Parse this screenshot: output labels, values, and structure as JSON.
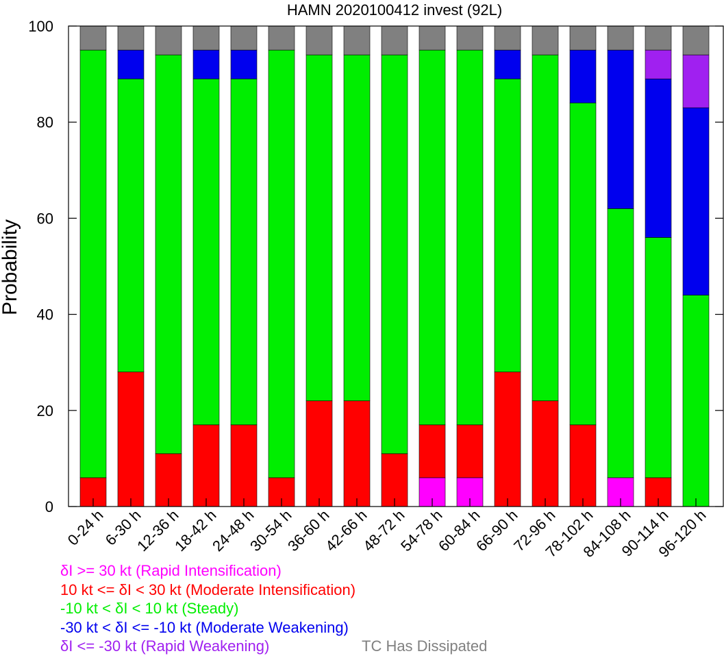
{
  "chart_data": {
    "type": "bar",
    "stacked": true,
    "title": "HAMN 2020100412 invest (92L)",
    "xlabel": "",
    "ylabel": "Probability",
    "ylim": [
      0,
      100
    ],
    "yticks": [
      "0",
      "20",
      "40",
      "60",
      "80",
      "100"
    ],
    "categories": [
      "0-24 h",
      "6-30 h",
      "12-36 h",
      "18-42 h",
      "24-48 h",
      "30-54 h",
      "36-60 h",
      "42-66 h",
      "48-72 h",
      "54-78 h",
      "60-84 h",
      "66-90 h",
      "72-96 h",
      "78-102 h",
      "84-108 h",
      "90-114 h",
      "96-120 h"
    ],
    "series": [
      {
        "name": "δI >= 30 kt (Rapid Intensification)",
        "color": "#ff00ff",
        "values": [
          0,
          0,
          0,
          0,
          0,
          0,
          0,
          0,
          0,
          6,
          6,
          0,
          0,
          0,
          6,
          0,
          0
        ]
      },
      {
        "name": "10 kt <= δI < 30 kt (Moderate Intensification)",
        "color": "#ff0000",
        "values": [
          6,
          28,
          11,
          17,
          17,
          6,
          22,
          22,
          11,
          11,
          11,
          28,
          22,
          17,
          0,
          6,
          0
        ]
      },
      {
        "name": "-10 kt < δI < 10 kt (Steady)",
        "color": "#00ee00",
        "values": [
          89,
          61,
          83,
          72,
          72,
          89,
          72,
          72,
          83,
          78,
          78,
          61,
          72,
          67,
          56,
          50,
          44
        ]
      },
      {
        "name": "-30 kt < δI <= -10 kt (Moderate Weakening)",
        "color": "#0000ee",
        "values": [
          0,
          6,
          0,
          6,
          6,
          0,
          0,
          0,
          0,
          0,
          0,
          6,
          0,
          11,
          33,
          33,
          39
        ]
      },
      {
        "name": "δI <= -30 kt (Rapid Weakening)",
        "color": "#a020f0",
        "values": [
          0,
          0,
          0,
          0,
          0,
          0,
          0,
          0,
          0,
          0,
          0,
          0,
          0,
          0,
          0,
          6,
          11
        ]
      },
      {
        "name": "TC Has Dissipated",
        "color": "#808080",
        "values": [
          5,
          5,
          6,
          5,
          5,
          5,
          6,
          6,
          6,
          5,
          5,
          5,
          6,
          5,
          5,
          5,
          6
        ]
      }
    ],
    "grid": false,
    "legend_position": "bottom"
  }
}
